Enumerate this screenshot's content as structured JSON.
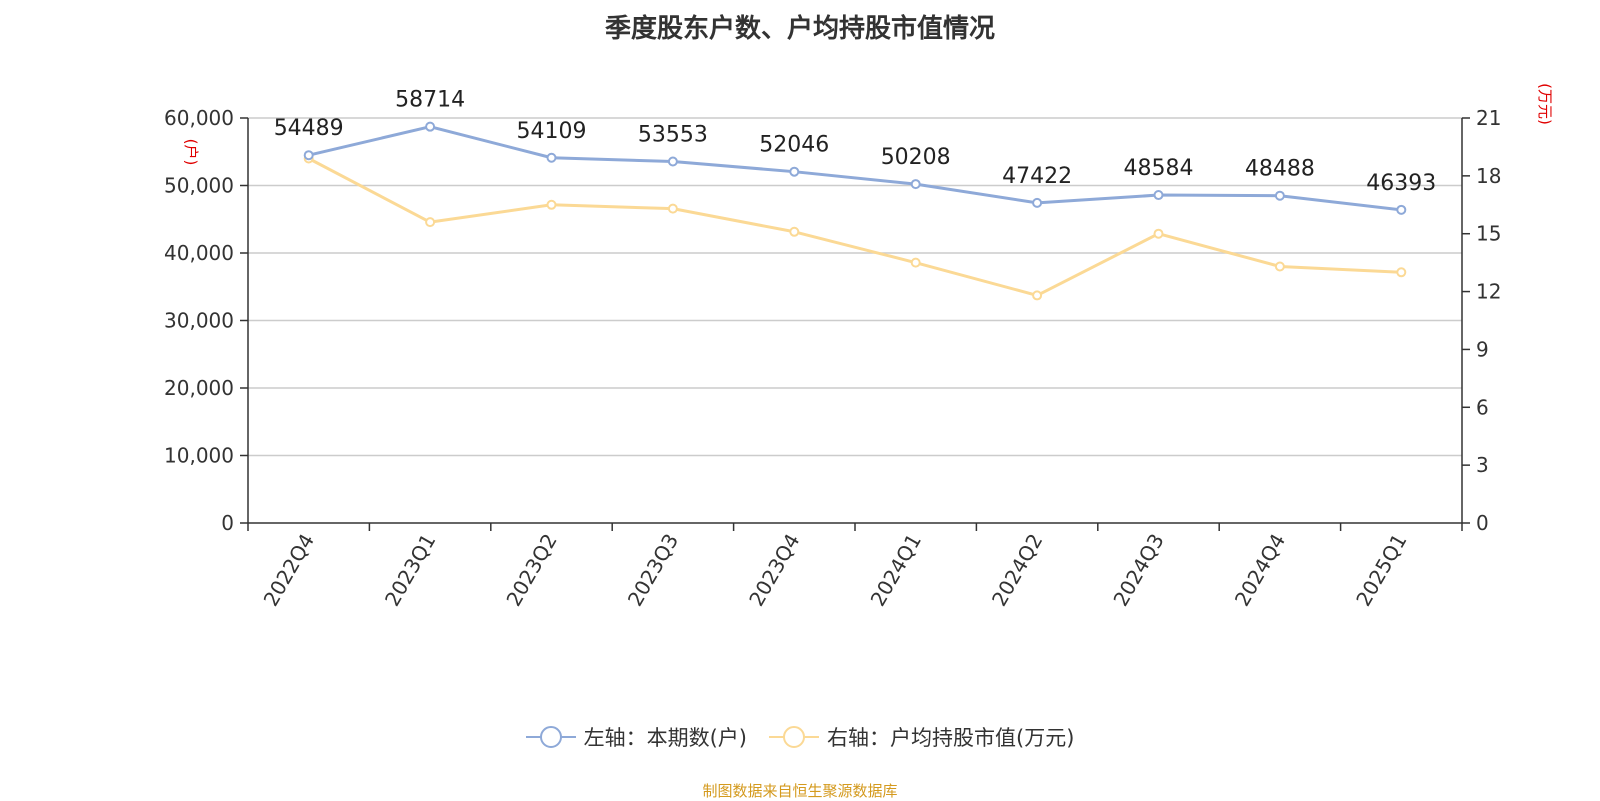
{
  "title": "季度股东户数、户均持股市值情况",
  "source": "制图数据来自恒生聚源数据库",
  "colors": {
    "left_series": "#8ea9d8",
    "right_series": "#fbd995",
    "unit": "#e00000",
    "source": "#d49a1e",
    "grid": "#cccccc"
  },
  "chart_data": {
    "type": "line",
    "categories": [
      "2022Q4",
      "2023Q1",
      "2023Q2",
      "2023Q3",
      "2023Q4",
      "2024Q1",
      "2024Q2",
      "2024Q3",
      "2024Q4",
      "2025Q1"
    ],
    "left_axis": {
      "unit": "(户)",
      "ylim": [
        0,
        60000
      ],
      "ticks": [
        "0",
        "10,000",
        "20,000",
        "30,000",
        "40,000",
        "50,000",
        "60,000"
      ]
    },
    "right_axis": {
      "unit": "(万元)",
      "ylim": [
        0,
        21
      ],
      "ticks": [
        "0",
        "3",
        "6",
        "9",
        "12",
        "15",
        "18",
        "21"
      ]
    },
    "series": [
      {
        "name": "左轴：本期数(户)",
        "axis": "left",
        "values": [
          54489,
          58714,
          54109,
          53553,
          52046,
          50208,
          47422,
          48584,
          48488,
          46393
        ],
        "show_labels": true
      },
      {
        "name": "右轴：户均持股市值(万元)",
        "axis": "right",
        "values": [
          18.9,
          15.6,
          16.5,
          16.3,
          15.1,
          13.5,
          11.8,
          15.0,
          13.3,
          13.0
        ],
        "show_labels": false
      }
    ],
    "grid": true,
    "legend": "bottom"
  }
}
